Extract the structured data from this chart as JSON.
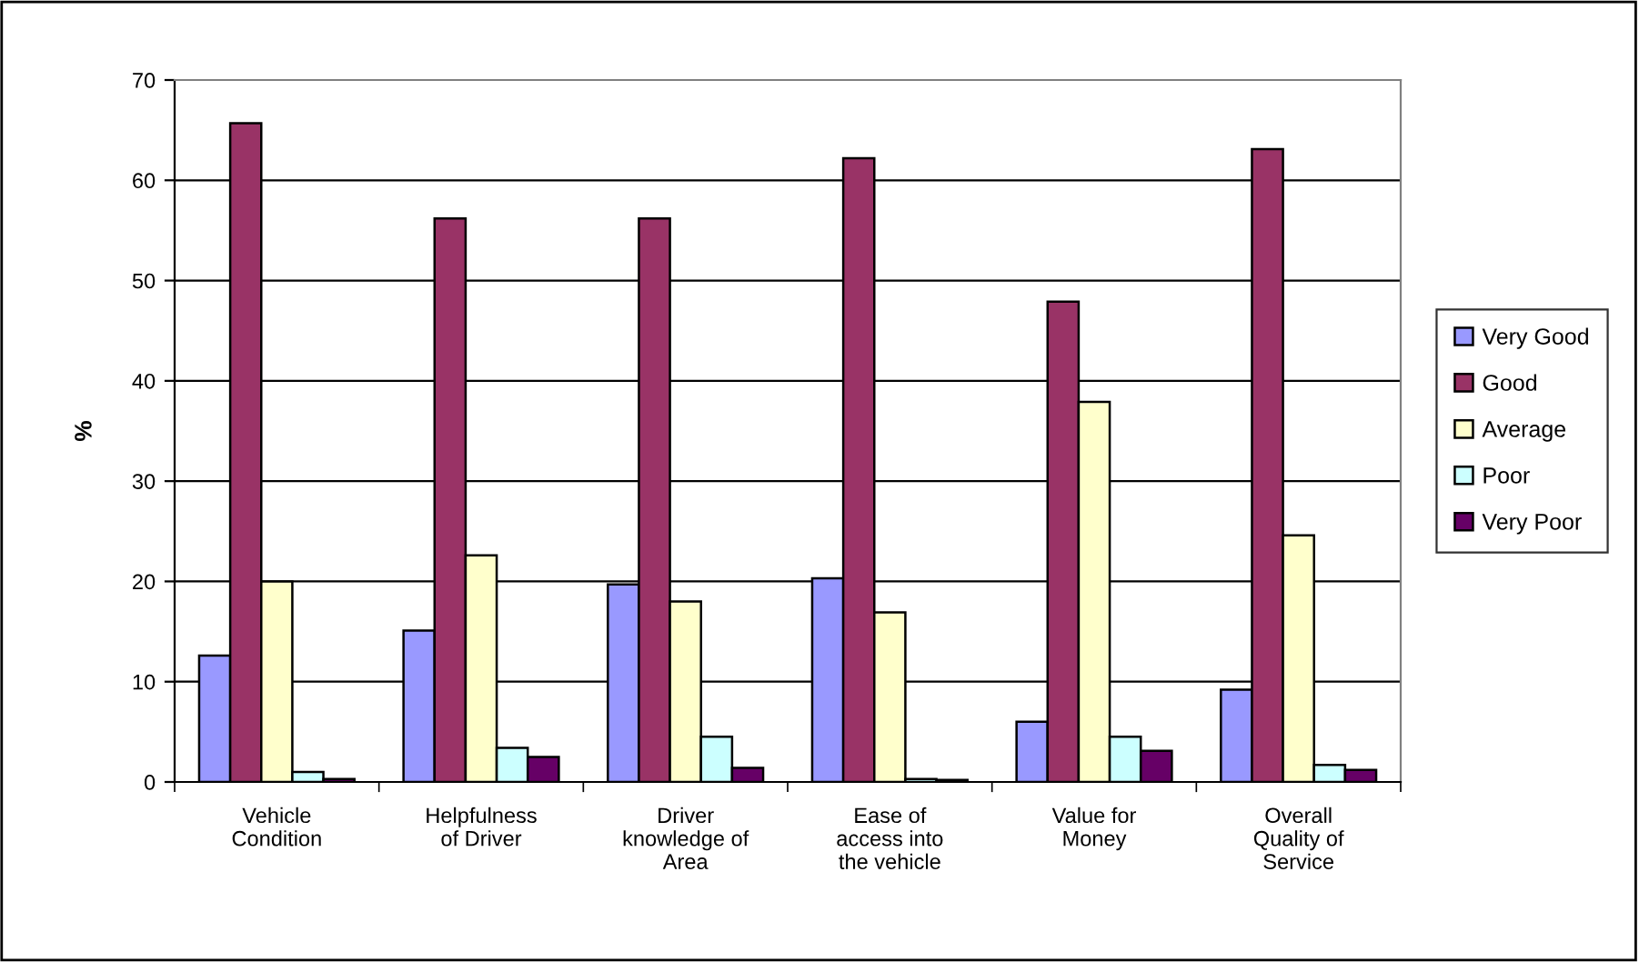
{
  "chart_data": {
    "type": "bar",
    "ylabel": "%",
    "categories": [
      "Vehicle Condition",
      "Helpfulness of Driver",
      "Driver knowledge of Area",
      "Ease of access into the vehicle",
      "Value for Money",
      "Overall Quality of Service"
    ],
    "series": [
      {
        "name": "Very Good",
        "color": "#9999ff",
        "values": [
          12.6,
          15.1,
          19.7,
          20.3,
          6.0,
          9.2
        ]
      },
      {
        "name": "Good",
        "color": "#993366",
        "values": [
          65.7,
          56.2,
          56.2,
          62.2,
          47.9,
          63.1
        ]
      },
      {
        "name": "Average",
        "color": "#ffffcc",
        "values": [
          20.0,
          22.6,
          18.0,
          16.9,
          37.9,
          24.6
        ]
      },
      {
        "name": "Poor",
        "color": "#ccffff",
        "values": [
          1.0,
          3.4,
          4.5,
          0.3,
          4.5,
          1.7
        ]
      },
      {
        "name": "Very Poor",
        "color": "#660066",
        "values": [
          0.3,
          2.5,
          1.4,
          0.2,
          3.1,
          1.2
        ]
      }
    ],
    "ylim": [
      0,
      70
    ],
    "yticks": [
      0,
      10,
      20,
      30,
      40,
      50,
      60,
      70
    ],
    "grid": "y",
    "legend": "right"
  }
}
